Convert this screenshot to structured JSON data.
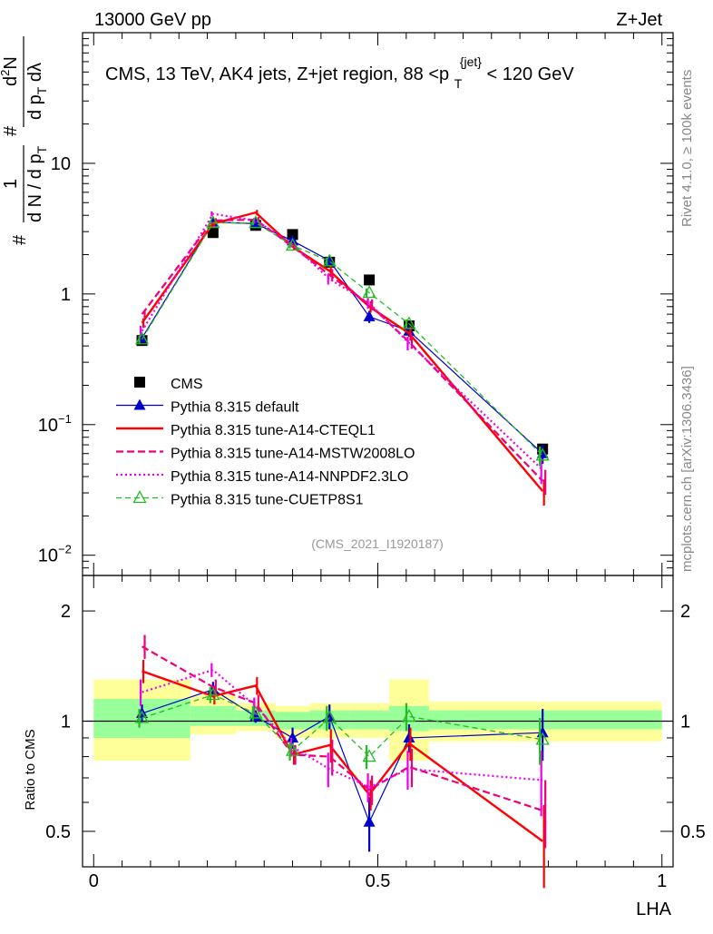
{
  "header": {
    "energy_label": "13000 GeV pp",
    "process_label": "Z+Jet",
    "analysis_title_main": "CMS, 13 TeV, AK4 jets, Z+jet region, 88 <p",
    "analysis_title_sub": "T",
    "analysis_title_sup": "{jet}",
    "analysis_title_tail": "< 120 GeV",
    "side_label_top": "Rivet 4.1.0, ≥ 100k events",
    "side_label_bottom": "mcplots.cern.ch [arXiv:1306.3436]",
    "analysis_id": "(CMS_2021_I1920187)"
  },
  "colors": {
    "data": "#000000",
    "default": "#0000cc",
    "cteql1": "#ff0000",
    "mstw": "#ee0077",
    "nnpdf": "#ee00ee",
    "cuetp8s1": "#22bb22",
    "band_inner": "#99ff99",
    "band_outer": "#ffff99"
  },
  "chart_data": [
    {
      "type": "line",
      "panel": "main",
      "yscale": "log",
      "xlim": [
        0,
        1
      ],
      "ylim": [
        0.007,
        100
      ],
      "ylabel": "1 / N dN / dp_T d²N / dp_T dλ",
      "yticks": [
        {
          "value": 0.01,
          "base": "10",
          "exp": "−2"
        },
        {
          "value": 0.1,
          "base": "10",
          "exp": "−1"
        },
        {
          "value": 1,
          "base": "1",
          "exp": ""
        },
        {
          "value": 10,
          "base": "10",
          "exp": ""
        }
      ],
      "x": [
        0.085,
        0.21,
        0.285,
        0.35,
        0.415,
        0.485,
        0.555,
        0.79
      ],
      "series": [
        {
          "key": "cms",
          "name": "CMS",
          "style": "data",
          "values": [
            0.44,
            2.95,
            3.35,
            2.85,
            1.75,
            1.28,
            0.57,
            0.065
          ],
          "errors": [
            0.03,
            0.1,
            0.1,
            0.08,
            0.06,
            0.05,
            0.03,
            0.004
          ]
        },
        {
          "key": "default",
          "name": "Pythia 8.315 default",
          "style": "default",
          "values": [
            0.46,
            3.55,
            3.45,
            2.55,
            1.8,
            0.67,
            0.52,
            0.06
          ],
          "errors": [
            0.03,
            0.15,
            0.15,
            0.12,
            0.12,
            0.07,
            0.05,
            0.01
          ]
        },
        {
          "key": "cteql1",
          "name": "Pythia 8.315 tune-A14-CTEQL1",
          "style": "cteql1",
          "values": [
            0.6,
            3.45,
            4.2,
            2.3,
            1.5,
            0.8,
            0.5,
            0.031
          ],
          "errors": [
            0.05,
            0.15,
            0.2,
            0.12,
            0.15,
            0.08,
            0.06,
            0.007
          ]
        },
        {
          "key": "mstw",
          "name": "Pythia 8.315 tune-A14-MSTW2008LO",
          "style": "mstw",
          "values": [
            0.7,
            3.65,
            3.7,
            2.3,
            1.4,
            0.83,
            0.43,
            0.037
          ],
          "errors": [
            0.05,
            0.15,
            0.18,
            0.12,
            0.15,
            0.08,
            0.05,
            0.008
          ]
        },
        {
          "key": "nnpdf",
          "name": "Pythia 8.315 tune-A14-NNPDF2.3LO",
          "style": "nnpdf",
          "values": [
            0.52,
            4.1,
            3.65,
            2.4,
            1.3,
            0.85,
            0.42,
            0.045
          ],
          "errors": [
            0.05,
            0.18,
            0.18,
            0.12,
            0.12,
            0.08,
            0.05,
            0.01
          ]
        },
        {
          "key": "cuetp8s1",
          "name": "Pythia 8.315 tune-CUETP8S1",
          "style": "cuetp8s1",
          "values": [
            0.45,
            3.5,
            3.5,
            2.35,
            1.78,
            1.02,
            0.59,
            0.058
          ],
          "errors": [
            0.03,
            0.15,
            0.15,
            0.12,
            0.12,
            0.08,
            0.05,
            0.01
          ]
        }
      ]
    },
    {
      "type": "line",
      "panel": "ratio",
      "yscale": "log",
      "xlim": [
        0,
        1
      ],
      "ylim": [
        0.4,
        2.5
      ],
      "ylabel": "Ratio to CMS",
      "xlabel": "LHA",
      "yticks": [
        {
          "value": 0.5,
          "label": "0.5"
        },
        {
          "value": 1,
          "label": "1"
        },
        {
          "value": 2,
          "label": "2"
        }
      ],
      "xticks": [
        {
          "value": 0,
          "label": "0"
        },
        {
          "value": 0.5,
          "label": "0.5"
        },
        {
          "value": 1,
          "label": "1"
        }
      ],
      "x": [
        0.085,
        0.21,
        0.285,
        0.35,
        0.415,
        0.485,
        0.555,
        0.79
      ],
      "bands": [
        {
          "x0": 0.0,
          "x1": 0.17,
          "inner": [
            0.9,
            1.15
          ],
          "outer": [
            0.78,
            1.3
          ]
        },
        {
          "x0": 0.17,
          "x1": 0.25,
          "inner": [
            0.97,
            1.1
          ],
          "outer": [
            0.92,
            1.18
          ]
        },
        {
          "x0": 0.25,
          "x1": 0.32,
          "inner": [
            0.97,
            1.07
          ],
          "outer": [
            0.94,
            1.12
          ]
        },
        {
          "x0": 0.32,
          "x1": 0.38,
          "inner": [
            0.95,
            1.06
          ],
          "outer": [
            0.9,
            1.1
          ]
        },
        {
          "x0": 0.38,
          "x1": 0.45,
          "inner": [
            0.95,
            1.07
          ],
          "outer": [
            0.9,
            1.12
          ]
        },
        {
          "x0": 0.45,
          "x1": 0.52,
          "inner": [
            0.95,
            1.07
          ],
          "outer": [
            0.9,
            1.12
          ]
        },
        {
          "x0": 0.52,
          "x1": 0.59,
          "inner": [
            0.94,
            1.1
          ],
          "outer": [
            0.78,
            1.3
          ]
        },
        {
          "x0": 0.59,
          "x1": 1.0,
          "inner": [
            0.95,
            1.07
          ],
          "outer": [
            0.88,
            1.13
          ]
        }
      ],
      "series": [
        {
          "key": "default",
          "name": "Pythia 8.315 default",
          "style": "default",
          "values": [
            1.05,
            1.22,
            1.03,
            0.9,
            1.03,
            0.53,
            0.9,
            0.93
          ],
          "errors": [
            0.06,
            0.06,
            0.04,
            0.06,
            0.08,
            0.09,
            0.08,
            0.15
          ]
        },
        {
          "key": "cteql1",
          "name": "Pythia 8.315 tune-A14-CTEQL1",
          "style": "cteql1",
          "values": [
            1.37,
            1.17,
            1.25,
            0.81,
            0.86,
            0.63,
            0.87,
            0.47
          ],
          "errors": [
            0.1,
            0.06,
            0.07,
            0.05,
            0.09,
            0.06,
            0.09,
            0.12
          ]
        },
        {
          "key": "mstw",
          "name": "Pythia 8.315 tune-A14-MSTW2008LO",
          "style": "mstw",
          "values": [
            1.6,
            1.24,
            1.12,
            0.81,
            0.8,
            0.65,
            0.75,
            0.57
          ],
          "errors": [
            0.12,
            0.06,
            0.06,
            0.05,
            0.09,
            0.06,
            0.09,
            0.12
          ]
        },
        {
          "key": "nnpdf",
          "name": "Pythia 8.315 tune-A14-NNPDF2.3LO",
          "style": "nnpdf",
          "values": [
            1.2,
            1.38,
            1.1,
            0.85,
            0.74,
            0.66,
            0.74,
            0.69
          ],
          "errors": [
            0.1,
            0.06,
            0.06,
            0.05,
            0.08,
            0.06,
            0.09,
            0.14
          ]
        },
        {
          "key": "cuetp8s1",
          "name": "Pythia 8.315 tune-CUETP8S1",
          "style": "cuetp8s1",
          "values": [
            1.02,
            1.18,
            1.05,
            0.83,
            1.02,
            0.8,
            1.03,
            0.89
          ],
          "errors": [
            0.06,
            0.06,
            0.05,
            0.05,
            0.08,
            0.06,
            0.09,
            0.13
          ]
        }
      ]
    }
  ]
}
